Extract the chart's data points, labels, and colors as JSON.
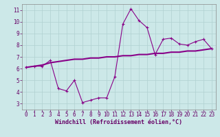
{
  "xlabel": "Windchill (Refroidissement éolien,°C)",
  "background_color": "#cce8e8",
  "grid_color": "#b0d0d0",
  "line_color": "#880088",
  "xlim": [
    -0.5,
    23.5
  ],
  "ylim": [
    2.5,
    11.5
  ],
  "xticks": [
    0,
    1,
    2,
    3,
    4,
    5,
    6,
    7,
    8,
    9,
    10,
    11,
    12,
    13,
    14,
    15,
    16,
    17,
    18,
    19,
    20,
    21,
    22,
    23
  ],
  "yticks": [
    3,
    4,
    5,
    6,
    7,
    8,
    9,
    10,
    11
  ],
  "line1_x": [
    0,
    1,
    2,
    3,
    4,
    5,
    6,
    7,
    8,
    9,
    10,
    11,
    12,
    13,
    14,
    15,
    16,
    17,
    18,
    19,
    20,
    21,
    22,
    23
  ],
  "line1_y": [
    6.1,
    6.2,
    6.2,
    6.7,
    4.3,
    4.1,
    5.0,
    3.1,
    3.3,
    3.5,
    3.5,
    5.3,
    9.8,
    11.1,
    10.1,
    9.5,
    7.2,
    8.5,
    8.6,
    8.1,
    8.0,
    8.3,
    8.5,
    7.7
  ],
  "line2_x": [
    0,
    1,
    2,
    3,
    4,
    5,
    6,
    7,
    8,
    9,
    10,
    11,
    12,
    13,
    14,
    15,
    16,
    17,
    18,
    19,
    20,
    21,
    22,
    23
  ],
  "line2_y": [
    6.1,
    6.2,
    6.3,
    6.5,
    6.6,
    6.7,
    6.8,
    6.8,
    6.9,
    6.9,
    7.0,
    7.0,
    7.1,
    7.1,
    7.2,
    7.2,
    7.3,
    7.3,
    7.4,
    7.4,
    7.5,
    7.5,
    7.6,
    7.7
  ],
  "tick_fontsize": 5.5,
  "xlabel_fontsize": 6.0
}
